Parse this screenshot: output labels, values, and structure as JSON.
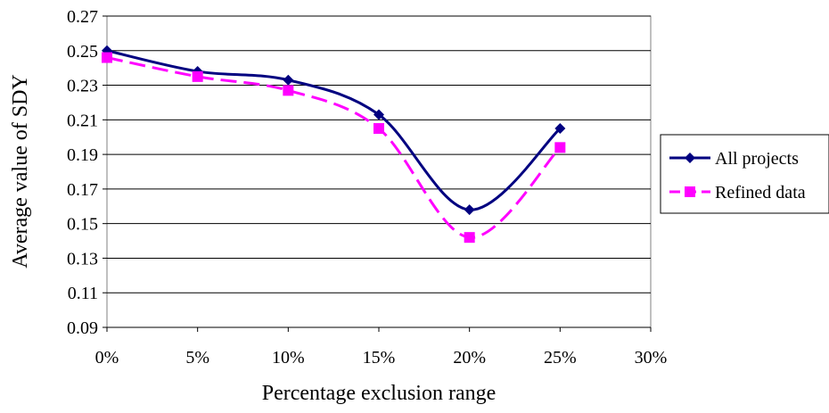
{
  "chart_data": {
    "type": "line",
    "xlabel": "Percentage exclusion range",
    "ylabel": "Average value of SDY",
    "x_ticks": [
      "0%",
      "5%",
      "10%",
      "15%",
      "20%",
      "25%",
      "30%"
    ],
    "x_values": [
      0,
      5,
      10,
      15,
      20,
      25
    ],
    "xlim": [
      0,
      30
    ],
    "ylim": [
      0.09,
      0.27
    ],
    "y_ticks": [
      "0.27",
      "0.25",
      "0.23",
      "0.21",
      "0.19",
      "0.17",
      "0.15",
      "0.13",
      "0.11",
      "0.09"
    ],
    "grid": true,
    "legend_position": "right",
    "series": [
      {
        "name": "All projects",
        "values": [
          0.25,
          0.238,
          0.233,
          0.213,
          0.158,
          0.205
        ],
        "color": "#000080",
        "marker": "diamond",
        "dash": "solid"
      },
      {
        "name": "Refined data",
        "values": [
          0.246,
          0.235,
          0.227,
          0.205,
          0.142,
          0.194
        ],
        "color": "#FF00FF",
        "marker": "square",
        "dash": "dashed"
      }
    ]
  }
}
